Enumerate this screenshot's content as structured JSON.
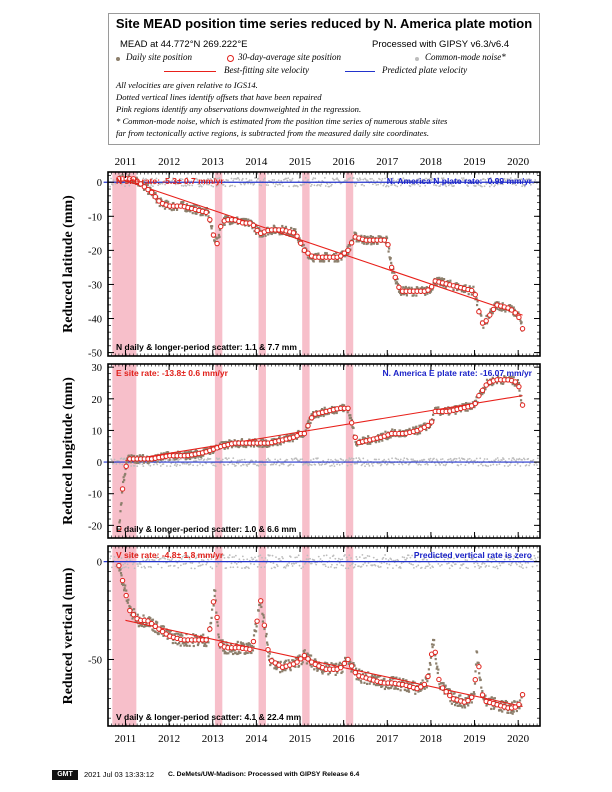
{
  "header": {
    "title": "Site MEAD position time series reduced by N. America plate motion",
    "site_coords": "MEAD at 44.772°N 269.222°E",
    "processing": "Processed with GIPSY v6.3/v6.4",
    "legend": {
      "daily": "Daily site position",
      "avg30": "30-day-average site position",
      "cmn": "Common-mode noise*",
      "best_fit": "Best-fitting site velocity",
      "predicted": "Predicted plate velocity"
    },
    "notes": [
      "All velocities are given relative to IGS14.",
      "Dotted vertical lines identify offsets that have been repaired",
      "Pink regions identify any observations downweighted in the regression.",
      "* Common-mode noise, which is estimated from the position time series of numerous stable sites",
      "far from tectonically active regions, is subtracted from the measured daily site coordinates."
    ]
  },
  "colors": {
    "daily": "#8c7f6c",
    "avg_ring": "#e0201a",
    "fit": "#e8201a",
    "plate": "#2233cc",
    "cmn": "#bdbdbd",
    "pink": "#f7bfca",
    "rate_red": "#e0201a",
    "rate_blue": "#1a22c8"
  },
  "chart_data": [
    {
      "type": "scatter",
      "component": "N",
      "ylabel": "Reduced latitude (mm)",
      "site_rate": "N site rate:  -5.3± 0.7 mm/yr",
      "plate_rate": "N. America N plate rate:  -0.99 mm/yr",
      "scatter": "N daily & longer-period scatter:   1.1 &   7.7 mm",
      "ylim": [
        -51,
        3
      ],
      "yticks": [
        -50,
        -40,
        -30,
        -20,
        -10,
        0
      ],
      "series_x": [
        2010.85,
        2011.2,
        2011.4,
        2011.6,
        2011.8,
        2012.0,
        2012.1,
        2012.3,
        2012.6,
        2012.9,
        2013.0,
        2013.1,
        2013.2,
        2013.3,
        2013.5,
        2013.7,
        2013.9,
        2014.0,
        2014.1,
        2014.3,
        2014.6,
        2014.9,
        2015.1,
        2015.3,
        2015.6,
        2015.9,
        2016.1,
        2016.25,
        2016.5,
        2016.9,
        2017.0,
        2017.1,
        2017.3,
        2017.6,
        2017.9,
        2018.0,
        2018.1,
        2018.4,
        2018.7,
        2019.0,
        2019.1,
        2019.2,
        2019.5,
        2019.8,
        2020.0,
        2020.1
      ],
      "series_y": [
        1,
        1,
        -1,
        -3,
        -6,
        -7,
        -7,
        -7,
        -8,
        -9,
        -15,
        -18,
        -12,
        -11,
        -11,
        -12,
        -12,
        -14,
        -15,
        -14,
        -14,
        -15,
        -20,
        -22,
        -22,
        -22,
        -20,
        -16,
        -17,
        -17,
        -17,
        -25,
        -32,
        -32,
        -32,
        -31,
        -29,
        -30,
        -31,
        -32,
        -38,
        -42,
        -36,
        -37,
        -39,
        -43
      ],
      "fit": {
        "x": [
          2011.0,
          2020.1
        ],
        "y": [
          0.5,
          -39
        ]
      },
      "plate": {
        "x": [
          2010.5,
          2020.5
        ],
        "y": [
          0,
          0
        ]
      }
    },
    {
      "type": "scatter",
      "component": "E",
      "ylabel": "Reduced longitude (mm)",
      "site_rate": "E site rate:  -13.8± 0.6 mm/yr",
      "plate_rate": "N. America E plate rate:  -16.07 mm/yr",
      "scatter": "E daily & longer-period scatter:   1.0 &   6.6 mm",
      "ylim": [
        -24,
        31
      ],
      "yticks": [
        -20,
        -10,
        0,
        10,
        20,
        30
      ],
      "series_x": [
        2010.85,
        2010.95,
        2011.05,
        2011.3,
        2011.6,
        2012.0,
        2012.4,
        2012.8,
        2013.0,
        2013.2,
        2013.5,
        2013.8,
        2014.0,
        2014.3,
        2014.6,
        2014.9,
        2015.0,
        2015.1,
        2015.3,
        2015.6,
        2015.9,
        2016.1,
        2016.3,
        2016.6,
        2016.9,
        2017.1,
        2017.4,
        2017.7,
        2018.0,
        2018.1,
        2018.4,
        2018.7,
        2019.0,
        2019.1,
        2019.3,
        2019.5,
        2019.8,
        2020.0,
        2020.1
      ],
      "series_y": [
        -21,
        -6,
        1,
        1,
        1,
        2,
        2,
        3,
        4,
        5,
        6,
        6,
        6,
        6,
        7,
        8,
        9,
        9,
        15,
        16,
        17,
        17,
        6,
        7,
        8,
        9,
        9,
        10,
        12,
        16,
        16,
        17,
        18,
        21,
        25,
        26,
        26,
        25,
        18
      ],
      "fit": {
        "x": [
          2011.0,
          2020.1
        ],
        "y": [
          0.5,
          21
        ]
      },
      "plate": {
        "x": [
          2010.5,
          2020.5
        ],
        "y": [
          0,
          0
        ]
      }
    },
    {
      "type": "scatter",
      "component": "V",
      "ylabel": "Reduced vertical (mm)",
      "site_rate": "V site rate:  -4.8± 1.8 mm/yr",
      "plate_rate": "Predicted vertical rate is zero",
      "scatter": "V daily & longer-period scatter:   4.1 &  22.4 mm",
      "ylim": [
        -84,
        8
      ],
      "yticks": [
        -50,
        0
      ],
      "series_x": [
        2010.85,
        2011.1,
        2011.3,
        2011.5,
        2011.8,
        2012.0,
        2012.3,
        2012.6,
        2012.9,
        2013.05,
        2013.15,
        2013.3,
        2013.6,
        2013.9,
        2014.1,
        2014.3,
        2014.6,
        2014.9,
        2015.1,
        2015.3,
        2015.6,
        2015.9,
        2016.1,
        2016.3,
        2016.6,
        2016.9,
        2017.1,
        2017.4,
        2017.7,
        2017.9,
        2018.0,
        2018.05,
        2018.2,
        2018.5,
        2018.8,
        2019.0,
        2019.05,
        2019.2,
        2019.5,
        2019.8,
        2020.0,
        2020.1
      ],
      "series_y": [
        -2,
        -25,
        -30,
        -30,
        -35,
        -38,
        -40,
        -40,
        -40,
        -15,
        -42,
        -44,
        -44,
        -45,
        -20,
        -50,
        -54,
        -52,
        -48,
        -52,
        -55,
        -55,
        -50,
        -58,
        -60,
        -62,
        -62,
        -63,
        -65,
        -62,
        -52,
        -38,
        -63,
        -70,
        -72,
        -68,
        -45,
        -71,
        -73,
        -75,
        -74,
        -68
      ],
      "fit": {
        "x": [
          2011.0,
          2020.1
        ],
        "y": [
          -30,
          -74
        ]
      },
      "plate": {
        "x": [
          2010.5,
          2020.5
        ],
        "y": [
          0,
          0
        ]
      }
    }
  ],
  "xaxis": {
    "range": [
      2010.6,
      2020.5
    ],
    "ticks": [
      "2011",
      "2012",
      "2013",
      "2014",
      "2015",
      "2016",
      "2017",
      "2018",
      "2019",
      "2020"
    ]
  },
  "pink_regions": [
    [
      2010.7,
      2011.25
    ],
    [
      2013.05,
      2013.22
    ],
    [
      2014.05,
      2014.22
    ],
    [
      2015.05,
      2015.22
    ],
    [
      2016.05,
      2016.22
    ]
  ],
  "footer": {
    "logo": "GMT",
    "timestamp": "2021 Jul 03 13:33:12",
    "credit": "C. DeMets/UW-Madison: Processed with GIPSY Release 6.4"
  }
}
